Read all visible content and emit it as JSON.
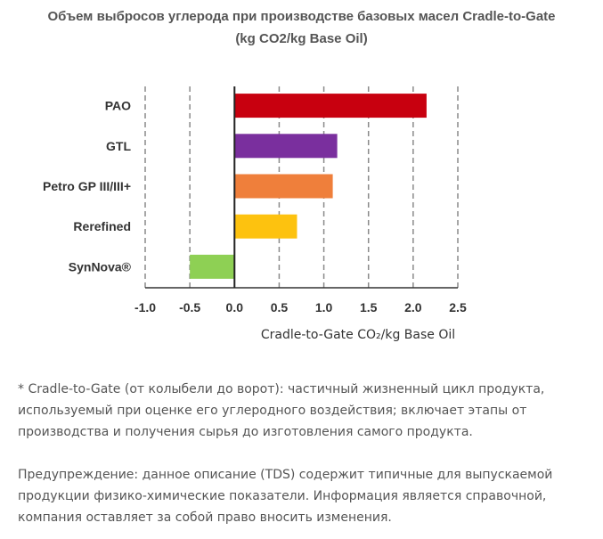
{
  "title_line1": "Объем выбросов углерода при производстве базовых масел Cradle-to-Gate",
  "title_line2": "(kg CO2/kg Base Oil)",
  "chart_data": {
    "type": "bar",
    "orientation": "horizontal",
    "categories": [
      "PAO",
      "GTL",
      "Petro GP III/III+",
      "Rerefined",
      "SynNova®"
    ],
    "values": [
      2.15,
      1.15,
      1.1,
      0.7,
      -0.5
    ],
    "colors": [
      "#c8000f",
      "#7a2f9e",
      "#ef7f3b",
      "#fdc20f",
      "#8ed054"
    ],
    "xlim": [
      -1.0,
      2.5
    ],
    "xticks": [
      "-1.0",
      "-0.5",
      "0.0",
      "0.5",
      "1.0",
      "1.5",
      "2.0",
      "2.5"
    ],
    "xlabel": "Cradle-to-Gate CO₂/kg Base Oil",
    "grid": "vertical dashed"
  },
  "notes": {
    "definition": "* Cradle-to-Gate (от колыбели до ворот): частичный жизненный цикл продукта, используемый при оценке его углеродного воздействия; включает этапы от производства и получения сырья до изготовления самого продукта.",
    "disclaimer": "Предупреждение: данное описание (TDS) содержит типичные для выпускаемой продукции физико-химические показатели. Информация является справочной, компания оставляет за собой право вносить изменения."
  }
}
